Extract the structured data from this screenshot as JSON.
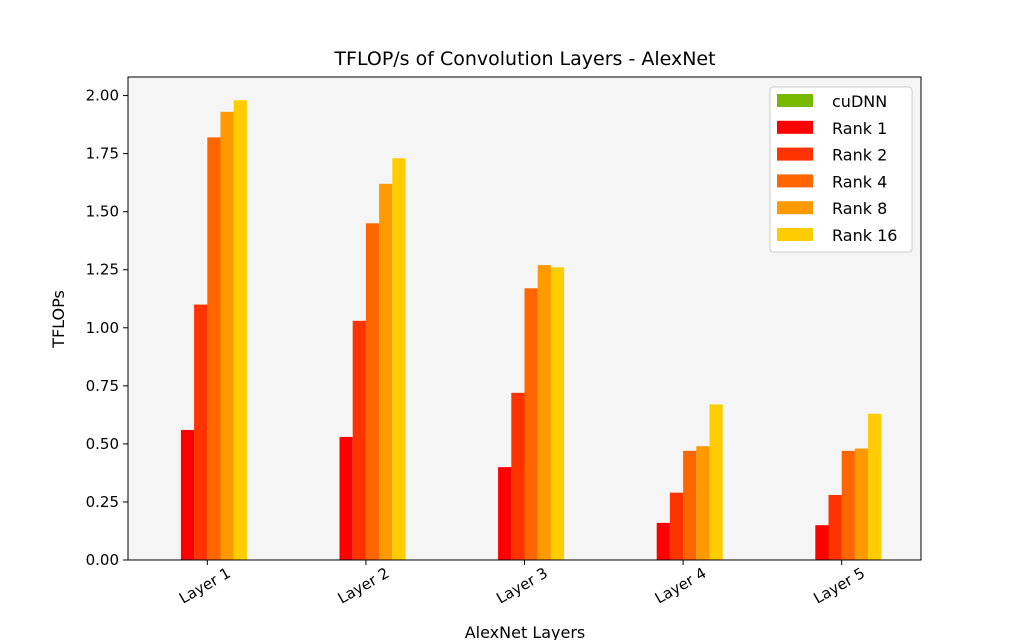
{
  "chart_data": {
    "type": "bar",
    "title": "TFLOP/s of Convolution Layers - AlexNet",
    "xlabel": "AlexNet Layers",
    "ylabel": "TFLOPs",
    "categories": [
      "Layer 1",
      "Layer 2",
      "Layer 3",
      "Layer 4",
      "Layer 5"
    ],
    "ylim": [
      0,
      2.08
    ],
    "yticks": [
      0.0,
      0.25,
      0.5,
      0.75,
      1.0,
      1.25,
      1.5,
      1.75,
      2.0
    ],
    "ytick_labels": [
      "0.00",
      "0.25",
      "0.50",
      "0.75",
      "1.00",
      "1.25",
      "1.50",
      "1.75",
      "2.00"
    ],
    "grid": false,
    "legend_position": "top-right",
    "series": [
      {
        "name": "cuDNN",
        "color": "#76b900",
        "values": [
          0,
          0,
          0,
          0,
          0
        ]
      },
      {
        "name": "Rank 1",
        "color": "#ff0000",
        "values": [
          0.56,
          0.53,
          0.4,
          0.16,
          0.15
        ]
      },
      {
        "name": "Rank 2",
        "color": "#ff3300",
        "values": [
          1.1,
          1.03,
          0.72,
          0.29,
          0.28
        ]
      },
      {
        "name": "Rank 4",
        "color": "#ff6600",
        "values": [
          1.82,
          1.45,
          1.17,
          0.47,
          0.47
        ]
      },
      {
        "name": "Rank 8",
        "color": "#ff9900",
        "values": [
          1.93,
          1.62,
          1.27,
          0.49,
          0.48
        ]
      },
      {
        "name": "Rank 16",
        "color": "#ffcc00",
        "values": [
          1.98,
          1.73,
          1.26,
          0.67,
          0.63
        ]
      }
    ]
  }
}
